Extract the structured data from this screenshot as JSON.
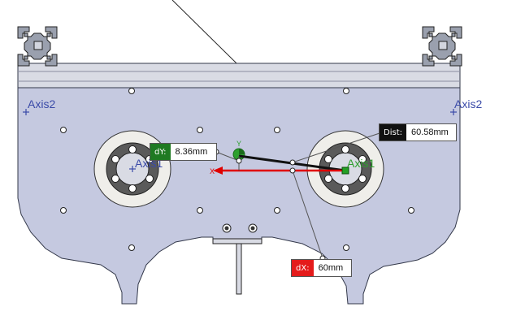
{
  "labels": {
    "axis_left": "Axis2",
    "axis_right": "Axis2",
    "axis_left_hole": "Axis1",
    "axis_right_hole": "Axis1",
    "triad_y": "Y",
    "triad_x": "X"
  },
  "dimensions": {
    "dy": {
      "tag": "dY:",
      "value": "8.36mm"
    },
    "dist": {
      "tag": "Dist:",
      "value": "60.58mm"
    },
    "dx": {
      "tag": "dX:",
      "value": "60mm"
    }
  },
  "colors": {
    "plate": "#c5c9e0",
    "rail": "#d9dbe4",
    "dy_tag": "#1f7a22",
    "dist_tag": "#111111",
    "dx_tag": "#e41b1b",
    "axis_text": "#3a4aa8",
    "x_vector": "#e00000"
  }
}
